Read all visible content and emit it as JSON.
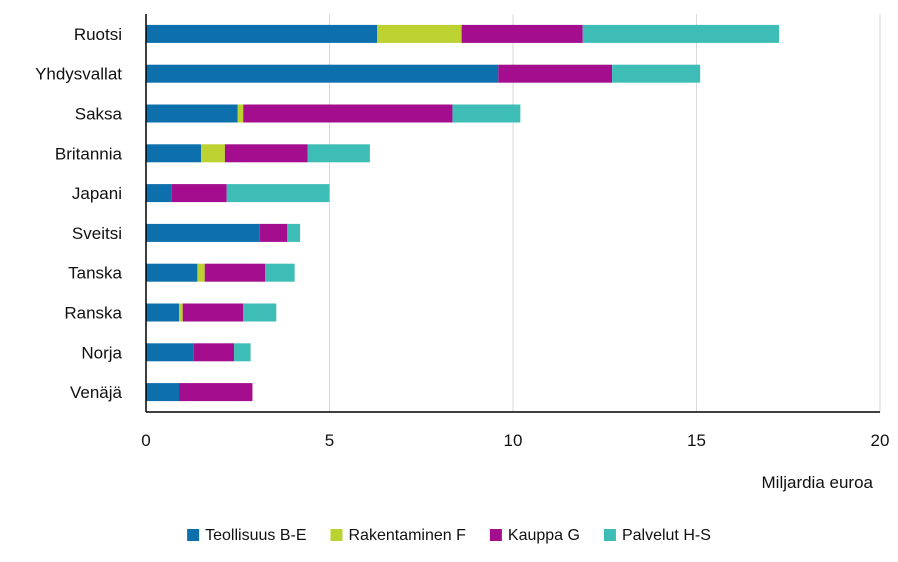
{
  "chart_data": {
    "type": "bar",
    "orientation": "horizontal",
    "stacked": true,
    "categories": [
      "Ruotsi",
      "Yhdysvallat",
      "Saksa",
      "Britannia",
      "Japani",
      "Sveitsi",
      "Tanska",
      "Ranska",
      "Norja",
      "Venäjä"
    ],
    "series": [
      {
        "name": "Teollisuus B-E",
        "color": "#0e6fad",
        "values": [
          6.3,
          9.6,
          2.5,
          1.5,
          0.7,
          3.1,
          1.4,
          0.9,
          1.3,
          0.9
        ]
      },
      {
        "name": "Rakentaminen F",
        "color": "#bcd230",
        "values": [
          2.3,
          0,
          0.15,
          0.65,
          0,
          0,
          0.2,
          0.1,
          0,
          0
        ]
      },
      {
        "name": "Kauppa G",
        "color": "#a30d8e",
        "values": [
          3.3,
          3.1,
          5.7,
          2.25,
          1.5,
          0.75,
          1.65,
          1.65,
          1.1,
          2.0
        ]
      },
      {
        "name": "Palvelut H-S",
        "color": "#3ebdb6",
        "values": [
          5.35,
          2.4,
          1.85,
          1.7,
          2.8,
          0.35,
          0.8,
          0.9,
          0.45,
          0
        ]
      }
    ],
    "xlabel": "Miljardia euroa",
    "xlim": [
      0,
      20
    ],
    "xticks": [
      0,
      5,
      10,
      15,
      20
    ],
    "grid": true,
    "legend_position": "bottom"
  }
}
